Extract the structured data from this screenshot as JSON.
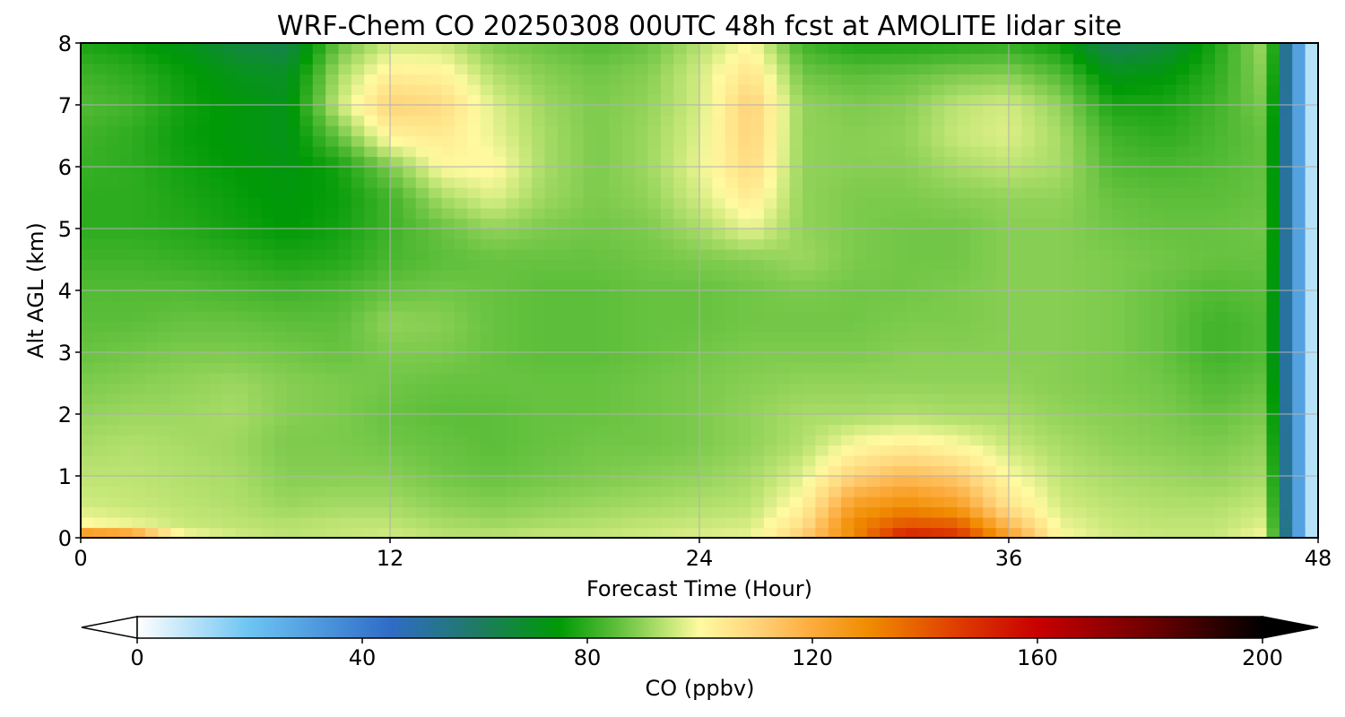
{
  "chart_data": {
    "type": "heatmap",
    "title": "WRF-Chem CO  20250308 00UTC 48h fcst at AMOLITE lidar site",
    "xlabel": "Forecast Time (Hour)",
    "ylabel": "Alt AGL (km)",
    "xlim": [
      0,
      48
    ],
    "ylim": [
      0,
      8
    ],
    "xticks": [
      0,
      12,
      24,
      36,
      48
    ],
    "yticks": [
      0,
      1,
      2,
      3,
      4,
      5,
      6,
      7,
      8
    ],
    "grid": true,
    "colorbar": {
      "label": "CO  (ppbv)",
      "orientation": "horizontal",
      "placement": "bottom",
      "min": 0,
      "max": 200,
      "ticks": [
        0,
        40,
        80,
        120,
        160,
        200
      ],
      "extend": "both",
      "colors": [
        {
          "value": 0,
          "color": "#ffffff"
        },
        {
          "value": 20,
          "color": "#6cc4f2"
        },
        {
          "value": 45,
          "color": "#2f6cc6"
        },
        {
          "value": 60,
          "color": "#1f7a66"
        },
        {
          "value": 75,
          "color": "#009a06"
        },
        {
          "value": 85,
          "color": "#5cbe3a"
        },
        {
          "value": 95,
          "color": "#c8e87a"
        },
        {
          "value": 100,
          "color": "#fffaa0"
        },
        {
          "value": 110,
          "color": "#ffd37a"
        },
        {
          "value": 120,
          "color": "#fcab3c"
        },
        {
          "value": 130,
          "color": "#f08c00"
        },
        {
          "value": 145,
          "color": "#e04000"
        },
        {
          "value": 160,
          "color": "#c80000"
        },
        {
          "value": 180,
          "color": "#6e0000"
        },
        {
          "value": 200,
          "color": "#000000"
        }
      ]
    },
    "x_hours": [
      0,
      2,
      4,
      6,
      8,
      10,
      12,
      14,
      16,
      18,
      20,
      22,
      24,
      26,
      28,
      30,
      32,
      34,
      36,
      38,
      40,
      42,
      44,
      46,
      47,
      48
    ],
    "y_km": [
      0,
      0.25,
      0.5,
      1,
      1.5,
      2,
      2.5,
      3,
      3.5,
      4,
      4.5,
      5,
      5.5,
      6,
      6.5,
      7,
      7.5,
      8
    ],
    "values": [
      [
        135,
        130,
        100,
        96,
        94,
        95,
        96,
        94,
        94,
        95,
        95,
        96,
        97,
        98,
        112,
        130,
        155,
        150,
        125,
        100,
        96,
        95,
        95,
        100,
        40,
        0
      ],
      [
        100,
        98,
        95,
        94,
        93,
        94,
        94,
        92,
        91,
        92,
        93,
        94,
        95,
        96,
        106,
        130,
        140,
        138,
        115,
        98,
        95,
        94,
        94,
        97,
        40,
        0
      ],
      [
        96,
        95,
        94,
        93,
        91,
        92,
        92,
        90,
        89,
        90,
        91,
        92,
        93,
        94,
        102,
        125,
        130,
        125,
        106,
        96,
        94,
        93,
        93,
        95,
        40,
        0
      ],
      [
        94,
        94,
        93,
        92,
        89,
        89,
        89,
        87,
        86,
        87,
        88,
        89,
        90,
        92,
        97,
        110,
        116,
        112,
        100,
        94,
        92,
        91,
        90,
        92,
        40,
        0
      ],
      [
        92,
        93,
        92,
        91,
        88,
        88,
        87,
        86,
        85,
        86,
        87,
        87,
        88,
        90,
        93,
        100,
        103,
        100,
        95,
        92,
        90,
        89,
        88,
        90,
        40,
        0
      ],
      [
        90,
        91,
        91,
        92,
        89,
        88,
        86,
        85,
        85,
        86,
        86,
        87,
        88,
        90,
        92,
        92,
        93,
        92,
        92,
        90,
        89,
        88,
        86,
        88,
        40,
        0
      ],
      [
        88,
        89,
        90,
        91,
        89,
        88,
        87,
        86,
        86,
        86,
        86,
        87,
        88,
        89,
        90,
        90,
        90,
        90,
        90,
        89,
        88,
        87,
        84,
        86,
        40,
        0
      ],
      [
        86,
        87,
        88,
        88,
        87,
        86,
        88,
        88,
        86,
        85,
        85,
        86,
        87,
        88,
        88,
        88,
        89,
        89,
        89,
        89,
        88,
        86,
        82,
        84,
        40,
        0
      ],
      [
        85,
        85,
        86,
        86,
        85,
        85,
        90,
        89,
        86,
        85,
        85,
        86,
        86,
        87,
        87,
        87,
        88,
        88,
        89,
        89,
        88,
        86,
        82,
        84,
        40,
        0
      ],
      [
        84,
        84,
        84,
        83,
        82,
        83,
        86,
        87,
        86,
        85,
        85,
        86,
        86,
        87,
        88,
        87,
        87,
        88,
        89,
        89,
        88,
        86,
        84,
        85,
        40,
        0
      ],
      [
        82,
        82,
        81,
        80,
        78,
        79,
        83,
        85,
        86,
        86,
        86,
        87,
        88,
        89,
        91,
        88,
        87,
        87,
        89,
        89,
        88,
        87,
        86,
        86,
        40,
        0
      ],
      [
        80,
        80,
        79,
        77,
        75,
        77,
        82,
        86,
        90,
        88,
        87,
        88,
        92,
        98,
        90,
        88,
        87,
        87,
        89,
        89,
        87,
        86,
        86,
        87,
        40,
        0
      ],
      [
        80,
        80,
        78,
        76,
        74,
        76,
        82,
        92,
        97,
        91,
        88,
        90,
        96,
        104,
        90,
        88,
        88,
        89,
        90,
        90,
        86,
        85,
        85,
        86,
        40,
        0
      ],
      [
        81,
        80,
        77,
        75,
        73,
        77,
        88,
        100,
        101,
        92,
        88,
        91,
        98,
        108,
        90,
        89,
        89,
        92,
        94,
        92,
        84,
        83,
        84,
        86,
        40,
        0
      ],
      [
        82,
        80,
        76,
        74,
        72,
        86,
        102,
        104,
        98,
        92,
        88,
        91,
        97,
        110,
        90,
        89,
        90,
        95,
        97,
        92,
        82,
        80,
        83,
        86,
        40,
        0
      ],
      [
        84,
        82,
        77,
        74,
        72,
        95,
        110,
        108,
        97,
        91,
        88,
        90,
        96,
        111,
        90,
        88,
        89,
        94,
        96,
        90,
        78,
        78,
        82,
        88,
        40,
        0
      ],
      [
        82,
        80,
        76,
        72,
        70,
        92,
        103,
        102,
        93,
        89,
        87,
        89,
        96,
        106,
        87,
        85,
        86,
        88,
        89,
        84,
        72,
        74,
        80,
        90,
        40,
        0
      ],
      [
        78,
        76,
        72,
        66,
        64,
        86,
        95,
        95,
        88,
        86,
        84,
        86,
        93,
        100,
        82,
        78,
        78,
        79,
        80,
        76,
        62,
        66,
        78,
        92,
        40,
        0
      ]
    ]
  }
}
